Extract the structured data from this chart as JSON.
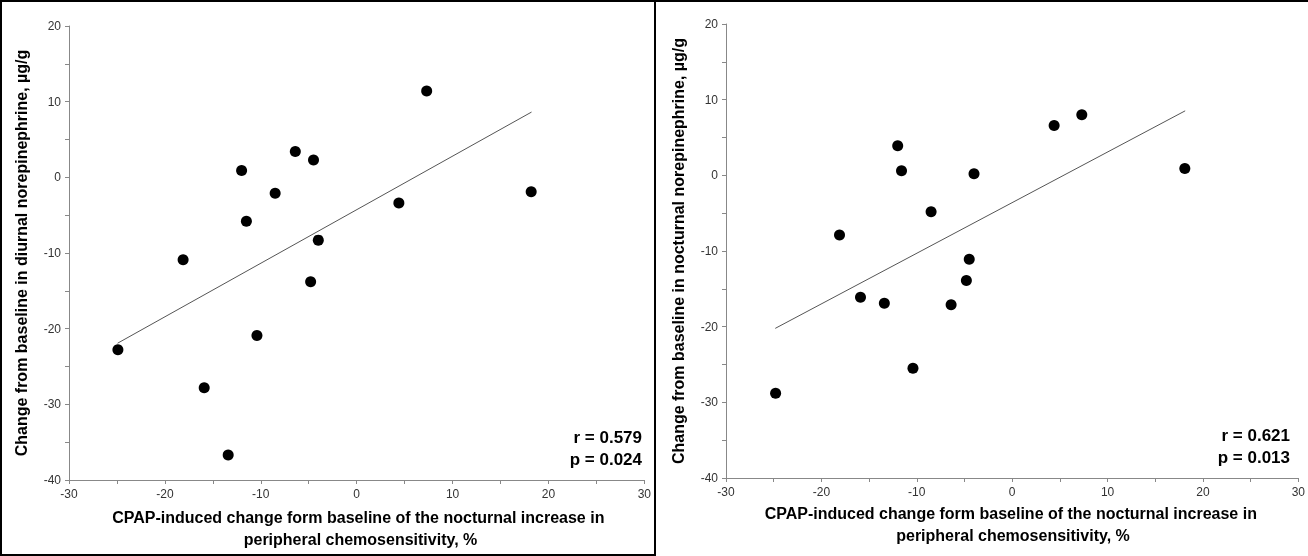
{
  "chart_data": [
    {
      "type": "scatter",
      "xlabel": "CPAP-induced change form baseline of the nocturnal increase in peripheral chemosensitivity, %",
      "ylabel": "Change from baseline in diurnal norepinephrine, µg/g",
      "marker": "circle",
      "grid": false,
      "xlim": [
        -30,
        30
      ],
      "xticks": [
        -30,
        {
          "value": -25,
          "label": null
        },
        -20,
        {
          "value": -15,
          "label": null
        },
        -10,
        {
          "value": -5,
          "label": null
        },
        0,
        {
          "value": 5,
          "label": null
        },
        10,
        {
          "value": 15,
          "label": null
        },
        20,
        {
          "value": 25,
          "label": null
        },
        30
      ],
      "ylim": [
        -40,
        20
      ],
      "yticks": [
        -40,
        {
          "value": -35,
          "label": null
        },
        -30,
        {
          "value": -25,
          "label": null
        },
        -20,
        {
          "value": -15,
          "label": null
        },
        -10,
        {
          "value": -5,
          "label": null
        },
        0,
        {
          "value": 5,
          "label": null
        },
        10,
        {
          "value": 15,
          "label": null
        },
        20
      ],
      "annotations": [
        "r = 0.579",
        "p = 0.024"
      ],
      "series": [
        {
          "type": "scatter",
          "color": "#000000",
          "x": [
            -24.9,
            -18.1,
            -15.9,
            -13.4,
            -12.0,
            -11.5,
            -10.4,
            -8.5,
            -6.4,
            -4.8,
            -4.5,
            -4.0,
            4.4,
            7.3,
            18.2
          ],
          "values": [
            -22.8,
            -10.9,
            -27.8,
            -36.7,
            0.9,
            -5.8,
            -20.9,
            -2.1,
            3.4,
            -13.8,
            2.3,
            -8.3,
            -3.4,
            11.4,
            -1.9
          ]
        },
        {
          "type": "line",
          "color": "#555555",
          "marker": "none",
          "line_style": "solid",
          "x": [
            -24.9,
            18.2
          ],
          "values": [
            -21.9,
            8.6
          ]
        }
      ]
    },
    {
      "type": "scatter",
      "xlabel": "CPAP-induced change form baseline of the nocturnal increase in peripheral chemosensitivity, %",
      "ylabel": "Change from baseline in nocturnal norepinephrine, µg/g",
      "marker": "circle",
      "grid": false,
      "xlim": [
        -30,
        30
      ],
      "xticks": [
        -30,
        {
          "value": -25,
          "label": null
        },
        -20,
        {
          "value": -15,
          "label": null
        },
        -10,
        {
          "value": -5,
          "label": null
        },
        0,
        {
          "value": 5,
          "label": null
        },
        10,
        {
          "value": 15,
          "label": null
        },
        20,
        {
          "value": 25,
          "label": null
        },
        30
      ],
      "ylim": [
        -40,
        20
      ],
      "yticks": [
        -40,
        {
          "value": -35,
          "label": null
        },
        -30,
        {
          "value": -25,
          "label": null
        },
        -20,
        {
          "value": -15,
          "label": null
        },
        -10,
        {
          "value": -5,
          "label": null
        },
        0,
        {
          "value": 5,
          "label": null
        },
        10,
        {
          "value": 15,
          "label": null
        },
        20
      ],
      "annotations": [
        "r = 0.621",
        "p = 0.013"
      ],
      "series": [
        {
          "type": "scatter",
          "color": "#000000",
          "x": [
            -24.8,
            -18.1,
            -15.9,
            -13.4,
            -12.0,
            -11.6,
            -10.4,
            -8.5,
            -6.4,
            -4.8,
            -4.5,
            -4.0,
            4.4,
            7.3,
            18.1
          ],
          "values": [
            -28.8,
            -7.9,
            -16.1,
            -16.9,
            3.9,
            0.6,
            -25.5,
            -4.8,
            -17.1,
            -13.9,
            -11.1,
            0.2,
            6.6,
            8.0,
            0.9
          ]
        },
        {
          "type": "line",
          "color": "#555555",
          "marker": "none",
          "line_style": "solid",
          "x": [
            -24.8,
            18.1
          ],
          "values": [
            -20.2,
            8.5
          ]
        }
      ]
    }
  ]
}
